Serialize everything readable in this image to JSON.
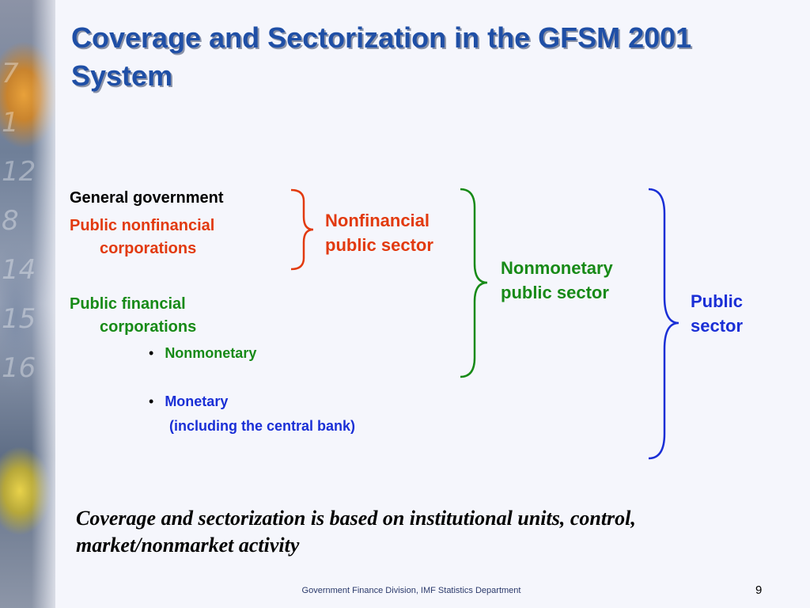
{
  "slide": {
    "title": "Coverage and Sectorization in the GFSM 2001 System",
    "items": {
      "general_government": "General government",
      "pnfc_line1": "Public nonfinancial",
      "pnfc_line2": "corporations",
      "pfc_line1": "Public financial",
      "pfc_line2": "corporations",
      "bullet_nonmonetary": "Nonmonetary",
      "bullet_monetary": "Monetary",
      "monetary_note": "(including the central bank)"
    },
    "groups": {
      "nonfinancial_line1": "Nonfinancial",
      "nonfinancial_line2": "public sector",
      "nonmonetary_line1": "Nonmonetary",
      "nonmonetary_line2": "public sector",
      "public_line1": "Public",
      "public_line2": "sector"
    },
    "bullet_char": "•",
    "bottom_note": "Coverage and sectorization is based on institutional units, control, market/nonmarket activity",
    "footer": "Government Finance Division, IMF Statistics Department",
    "page_number": "9",
    "colors": {
      "title": "#1f4fa6",
      "red": "#e23a0e",
      "green": "#178a17",
      "blue": "#1a2fd6"
    }
  }
}
